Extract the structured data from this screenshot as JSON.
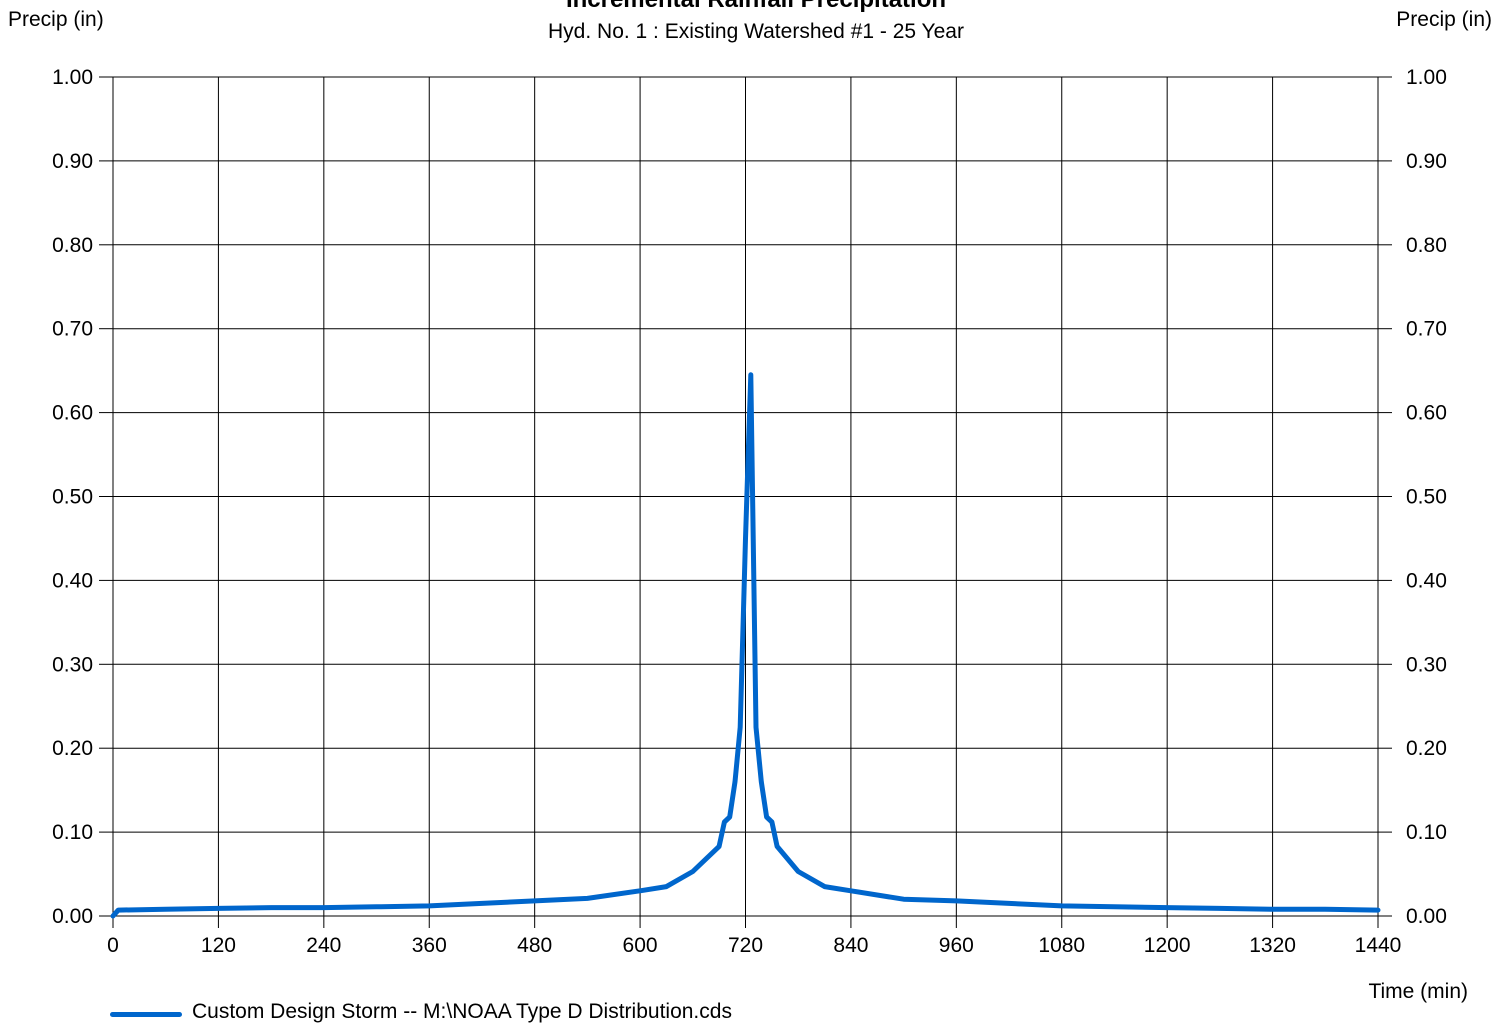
{
  "chart_data": {
    "type": "line",
    "title": "Incremental Rainfall Precipitation",
    "subtitle": "Hyd. No. 1 : Existing Watershed #1 - 25 Year",
    "ylabel_left": "Precip (in)",
    "ylabel_right": "Precip (in)",
    "xlabel": "Time (min)",
    "xlim": [
      0,
      1440
    ],
    "ylim": [
      0,
      1.0
    ],
    "x_ticks": [
      0,
      120,
      240,
      360,
      480,
      600,
      720,
      840,
      960,
      1080,
      1200,
      1320,
      1440
    ],
    "x_tick_labels": [
      "0",
      "120",
      "240",
      "360",
      "480",
      "600",
      "720",
      "840",
      "960",
      "1080",
      "1200",
      "1320",
      "1440"
    ],
    "y_ticks": [
      0,
      0.1,
      0.2,
      0.3,
      0.4,
      0.5,
      0.6,
      0.7,
      0.8,
      0.9,
      1.0
    ],
    "y_tick_labels": [
      "0.00",
      "0.10",
      "0.20",
      "0.30",
      "0.40",
      "0.50",
      "0.60",
      "0.70",
      "0.80",
      "0.90",
      "1.00"
    ],
    "grid": true,
    "legend_position": "bottom-left",
    "series": [
      {
        "name": "Custom Design Storm -- M:\\NOAA Type D Distribution.cds",
        "color": "#0066cc",
        "x": [
          0,
          6,
          60,
          120,
          180,
          240,
          300,
          360,
          420,
          480,
          540,
          600,
          630,
          660,
          690,
          696,
          702,
          708,
          714,
          720,
          726,
          732,
          738,
          744,
          750,
          756,
          780,
          810,
          840,
          900,
          960,
          1020,
          1080,
          1140,
          1200,
          1260,
          1320,
          1380,
          1440
        ],
        "y": [
          0.0,
          0.007,
          0.008,
          0.009,
          0.01,
          0.01,
          0.011,
          0.012,
          0.015,
          0.018,
          0.021,
          0.03,
          0.035,
          0.053,
          0.083,
          0.112,
          0.118,
          0.16,
          0.225,
          0.45,
          0.645,
          0.225,
          0.16,
          0.118,
          0.112,
          0.083,
          0.053,
          0.035,
          0.03,
          0.02,
          0.018,
          0.015,
          0.012,
          0.011,
          0.01,
          0.009,
          0.008,
          0.008,
          0.007
        ]
      }
    ]
  }
}
